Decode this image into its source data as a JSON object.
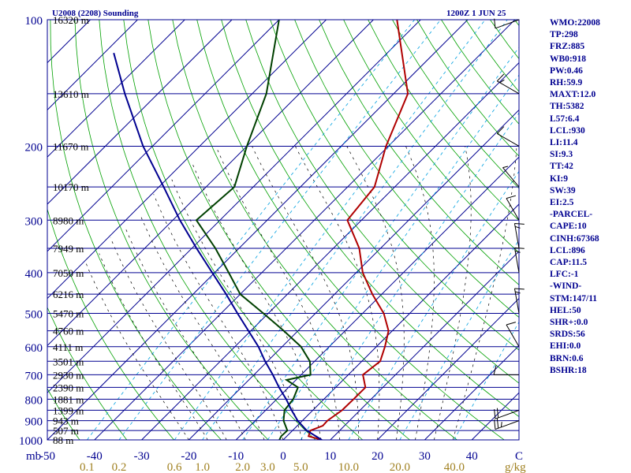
{
  "chart_data": {
    "type": "line",
    "title": "U2008 (2208) Sounding",
    "valid_time": "1200Z  1 JUN 25",
    "pressure_unit_label": "mb",
    "temp_unit_label": "C",
    "mixing_ratio_unit_label": "g/kg",
    "pressure_ticks": [
      100,
      200,
      300,
      400,
      500,
      600,
      700,
      800,
      900,
      1000
    ],
    "pressure_range": [
      100,
      1000
    ],
    "temperature_ticks": [
      -50,
      -40,
      -30,
      -20,
      -10,
      0,
      10,
      20,
      30,
      40
    ],
    "temperature_range": [
      -50,
      50
    ],
    "mixing_ratio_labels": [
      "0.1",
      "0.2",
      "0.6",
      "1.0",
      "2.0",
      "3.0",
      "5.0",
      "10.0",
      "20.0",
      "40.0"
    ],
    "height_levels": [
      {
        "p": 100,
        "label": "16320 m"
      },
      {
        "p": 150,
        "label": "13610 m"
      },
      {
        "p": 200,
        "label": "11670 m"
      },
      {
        "p": 250,
        "label": "10170 m"
      },
      {
        "p": 300,
        "label": "8980 m"
      },
      {
        "p": 350,
        "label": "7949 m"
      },
      {
        "p": 400,
        "label": "7050 m"
      },
      {
        "p": 450,
        "label": "6216 m"
      },
      {
        "p": 500,
        "label": "5470 m"
      },
      {
        "p": 550,
        "label": "4760 m"
      },
      {
        "p": 600,
        "label": "4111 m"
      },
      {
        "p": 650,
        "label": "3501 m"
      },
      {
        "p": 700,
        "label": "2930 m"
      },
      {
        "p": 750,
        "label": "2390 m"
      },
      {
        "p": 800,
        "label": "1881 m"
      },
      {
        "p": 850,
        "label": "1399 m"
      },
      {
        "p": 900,
        "label": "943 m"
      },
      {
        "p": 950,
        "label": "507 m"
      },
      {
        "p": 1000,
        "label": "88 m"
      }
    ],
    "series": [
      {
        "color": "#b00000",
        "points": [
          [
            1000,
            8.2
          ],
          [
            980,
            4.6
          ],
          [
            950,
            3.8
          ],
          [
            925,
            5.4
          ],
          [
            900,
            5.3
          ],
          [
            850,
            6.2
          ],
          [
            800,
            6.3
          ],
          [
            750,
            6.3
          ],
          [
            700,
            3.1
          ],
          [
            650,
            3.9
          ],
          [
            600,
            1.8
          ],
          [
            550,
            -0.8
          ],
          [
            500,
            -5.5
          ],
          [
            450,
            -12.0
          ],
          [
            400,
            -18.6
          ],
          [
            350,
            -24.5
          ],
          [
            300,
            -33.0
          ],
          [
            250,
            -34.3
          ],
          [
            200,
            -40.5
          ],
          [
            150,
            -47.0
          ],
          [
            100,
            -65.0
          ]
        ]
      },
      {
        "color": "#004000",
        "points": [
          [
            1000,
            -0.8
          ],
          [
            980,
            -1.2
          ],
          [
            950,
            -1.1
          ],
          [
            900,
            -4.0
          ],
          [
            850,
            -6.0
          ],
          [
            800,
            -6.5
          ],
          [
            750,
            -8.0
          ],
          [
            720,
            -12.0
          ],
          [
            700,
            -8.0
          ],
          [
            650,
            -11.0
          ],
          [
            600,
            -16.0
          ],
          [
            550,
            -23.0
          ],
          [
            500,
            -31.0
          ],
          [
            450,
            -40.0
          ],
          [
            400,
            -47.0
          ],
          [
            350,
            -55.0
          ],
          [
            300,
            -65.0
          ],
          [
            250,
            -64.0
          ],
          [
            200,
            -70.0
          ],
          [
            150,
            -77.0
          ],
          [
            100,
            -90.0
          ]
        ]
      },
      {
        "color": "#000090",
        "points": [
          [
            1000,
            8.2
          ],
          [
            950,
            3.0
          ],
          [
            900,
            -1.0
          ],
          [
            850,
            -4.5
          ],
          [
            800,
            -8.0
          ],
          [
            750,
            -12.0
          ],
          [
            700,
            -16.0
          ],
          [
            650,
            -20.5
          ],
          [
            600,
            -25.0
          ],
          [
            550,
            -30.5
          ],
          [
            500,
            -36.5
          ],
          [
            450,
            -43.0
          ],
          [
            400,
            -50.5
          ],
          [
            350,
            -59.0
          ],
          [
            300,
            -68.5
          ],
          [
            250,
            -79.0
          ],
          [
            200,
            -92.0
          ],
          [
            150,
            -107.0
          ],
          [
            120,
            -118.0
          ]
        ]
      }
    ],
    "wind_barbs": [
      {
        "p": 100,
        "dir": 250,
        "speed": 10
      },
      {
        "p": 150,
        "dir": 300,
        "speed": 15
      },
      {
        "p": 200,
        "dir": 300,
        "speed": 10
      },
      {
        "p": 250,
        "dir": 320,
        "speed": 5
      },
      {
        "p": 300,
        "dir": 330,
        "speed": 10
      },
      {
        "p": 350,
        "dir": 350,
        "speed": 15
      },
      {
        "p": 400,
        "dir": 350,
        "speed": 15
      },
      {
        "p": 500,
        "dir": 350,
        "speed": 15
      },
      {
        "p": 600,
        "dir": 330,
        "speed": 10
      },
      {
        "p": 700,
        "dir": 270,
        "speed": 10
      },
      {
        "p": 850,
        "dir": 250,
        "speed": 20
      },
      {
        "p": 900,
        "dir": 250,
        "speed": 25
      }
    ]
  },
  "indices": [
    "WMO:22008",
    "TP:298",
    "FRZ:885",
    "WB0:918",
    "PW:0.46",
    "RH:59.9",
    "MAXT:12.0",
    "TH:5382",
    "L57:6.4",
    "LCL:930",
    "LI:11.4",
    "SI:9.3",
    "TT:42",
    "KI:9",
    "SW:39",
    "EI:2.5",
    "-PARCEL-",
    "CAPE:10",
    "CINH:67368",
    "LCL:896",
    "CAP:11.5",
    "LFC:-1",
    "-WIND-",
    "STM:147/11",
    "HEL:50",
    "SHR+:0.0",
    "SRDS:56",
    "EHI:0.0",
    "BRN:0.6",
    "BSHR:18"
  ],
  "colors": {
    "frame": "#000090",
    "isobar": "#000090",
    "isotherm": "#000090",
    "dry_adiabat": "#00a000",
    "moist_adiabat": "#000000",
    "mixing_ratio": "#00a0e0",
    "mixing_ratio_label": "#a08020",
    "temperature": "#b00000",
    "dewpoint": "#004000",
    "parcel": "#000090",
    "barb": "#000000"
  }
}
